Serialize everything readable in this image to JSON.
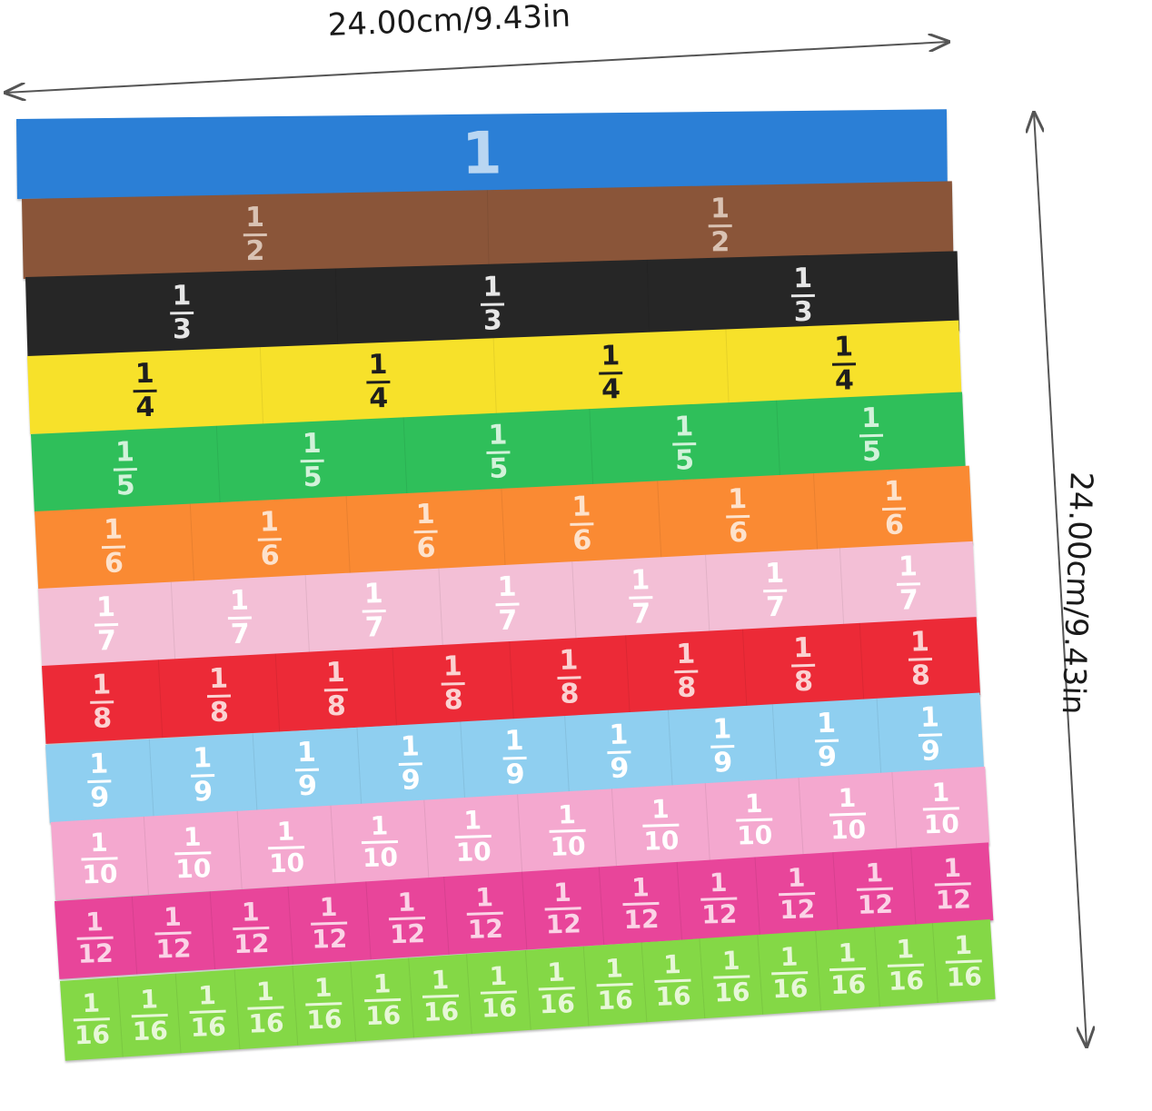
{
  "dimensions": {
    "width_label": "24.00cm/9.43in",
    "height_label": "24.00cm/9.43in"
  },
  "strips": [
    {
      "parts": 1,
      "label": "1",
      "numerator": "1",
      "denominator": "",
      "color": "#2b7fd6",
      "text_color": "#b9d6f2"
    },
    {
      "parts": 2,
      "label": "1/2",
      "numerator": "1",
      "denominator": "2",
      "color": "#8a5539",
      "text_color": "#d9c2b3"
    },
    {
      "parts": 3,
      "label": "1/3",
      "numerator": "1",
      "denominator": "3",
      "color": "#262626",
      "text_color": "#e6e6e6"
    },
    {
      "parts": 4,
      "label": "1/4",
      "numerator": "1",
      "denominator": "4",
      "color": "#f7e12a",
      "text_color": "#1e1e1e"
    },
    {
      "parts": 5,
      "label": "1/5",
      "numerator": "1",
      "denominator": "5",
      "color": "#2fbf5a",
      "text_color": "#d2f2da"
    },
    {
      "parts": 6,
      "label": "1/6",
      "numerator": "1",
      "denominator": "6",
      "color": "#fa8a33",
      "text_color": "#fde2cc"
    },
    {
      "parts": 7,
      "label": "1/7",
      "numerator": "1",
      "denominator": "7",
      "color": "#f3bfd6",
      "text_color": "#ffffff"
    },
    {
      "parts": 8,
      "label": "1/8",
      "numerator": "1",
      "denominator": "8",
      "color": "#ec2a37",
      "text_color": "#fbd2d2"
    },
    {
      "parts": 9,
      "label": "1/9",
      "numerator": "1",
      "denominator": "9",
      "color": "#8fcff0",
      "text_color": "#ffffff"
    },
    {
      "parts": 10,
      "label": "1/10",
      "numerator": "1",
      "denominator": "10",
      "color": "#f4a8cf",
      "text_color": "#ffffff"
    },
    {
      "parts": 12,
      "label": "1/12",
      "numerator": "1",
      "denominator": "12",
      "color": "#e8459a",
      "text_color": "#fbd3e6"
    },
    {
      "parts": 16,
      "label": "1/16",
      "numerator": "1",
      "denominator": "16",
      "color": "#84d846",
      "text_color": "#e7f7d8"
    }
  ]
}
